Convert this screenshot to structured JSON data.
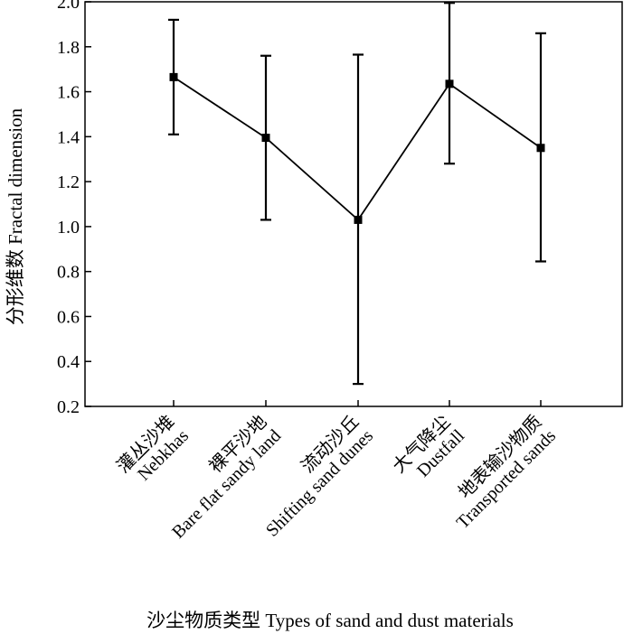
{
  "chart_data": {
    "type": "line",
    "title": "",
    "xlabel": "沙尘物质类型 Types of sand and dust materials",
    "ylabel": "分形维数 Fractal dimension",
    "ylim": [
      0.2,
      2.0
    ],
    "yticks": [
      "0.2",
      "0.4",
      "0.6",
      "0.8",
      "1.0",
      "1.2",
      "1.4",
      "1.6",
      "1.8",
      "2.0"
    ],
    "grid": false,
    "categories": [
      {
        "zh": "灌丛沙堆",
        "en": "Nebkhas"
      },
      {
        "zh": "裸平沙地",
        "en": "Bare flat sandy land"
      },
      {
        "zh": "流动沙丘",
        "en": "Shifting sand dunes"
      },
      {
        "zh": "大气降尘",
        "en": "Dustfall"
      },
      {
        "zh": "地表输沙物质",
        "en": "Transported sands"
      }
    ],
    "series": [
      {
        "values": [
          1.665,
          1.395,
          1.03,
          1.635,
          1.35
        ],
        "error_low": [
          1.41,
          1.03,
          0.3,
          1.28,
          0.845
        ],
        "error_high": [
          1.92,
          1.76,
          1.765,
          1.995,
          1.86
        ]
      }
    ]
  }
}
